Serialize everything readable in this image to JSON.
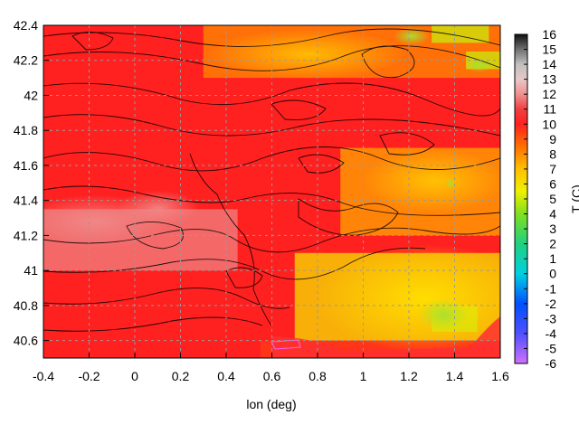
{
  "chart_data": {
    "type": "heatmap",
    "title": "",
    "xlabel": "lon (deg)",
    "ylabel": "",
    "colorbar_label": "T (C)",
    "xlim": [
      -0.4,
      1.6
    ],
    "ylim": [
      40.5,
      42.4
    ],
    "xticks": [
      "-0.4",
      "-0.2",
      "0",
      "0.2",
      "0.4",
      "0.6",
      "0.8",
      "1",
      "1.2",
      "1.4",
      "1.6"
    ],
    "yticks": [
      "40.6",
      "40.8",
      "41",
      "41.2",
      "41.4",
      "41.6",
      "41.8",
      "42",
      "42.2",
      "42.4"
    ],
    "colorbar_range": [
      -6,
      16
    ],
    "colorbar_ticks": [
      "-6",
      "-5",
      "-4",
      "-3",
      "-2",
      "-1",
      "0",
      "1",
      "2",
      "3",
      "4",
      "5",
      "6",
      "7",
      "8",
      "9",
      "10",
      "11",
      "12",
      "13",
      "14",
      "15",
      "16"
    ],
    "colormap": [
      {
        "value": -6,
        "color": "#d070ff"
      },
      {
        "value": -4,
        "color": "#5050ff"
      },
      {
        "value": -2,
        "color": "#0050ff"
      },
      {
        "value": 0,
        "color": "#00d0e0"
      },
      {
        "value": 2,
        "color": "#20d080"
      },
      {
        "value": 4,
        "color": "#80e020"
      },
      {
        "value": 5.5,
        "color": "#f0f000"
      },
      {
        "value": 7,
        "color": "#ffc000"
      },
      {
        "value": 8.5,
        "color": "#ff7000"
      },
      {
        "value": 10,
        "color": "#ff2020"
      },
      {
        "value": 11,
        "color": "#f04040"
      },
      {
        "value": 12,
        "color": "#f09090"
      },
      {
        "value": 13,
        "color": "#e8c8c8"
      },
      {
        "value": 14,
        "color": "#c0c0c0"
      },
      {
        "value": 15,
        "color": "#707070"
      },
      {
        "value": 16,
        "color": "#101010"
      }
    ],
    "grid": true,
    "contours": true,
    "temperature_regions": [
      {
        "lon": [
          -0.4,
          1.6
        ],
        "lat": [
          40.5,
          42.4
        ],
        "t": 10
      },
      {
        "lon": [
          -0.4,
          0.45
        ],
        "lat": [
          41.0,
          41.35
        ],
        "t": 11.8
      },
      {
        "lon": [
          0.3,
          1.6
        ],
        "lat": [
          42.1,
          42.4
        ],
        "t": 8
      },
      {
        "lon": [
          1.3,
          1.55
        ],
        "lat": [
          42.3,
          42.4
        ],
        "t": 5
      },
      {
        "lon": [
          1.45,
          1.6
        ],
        "lat": [
          42.15,
          42.25
        ],
        "t": 5
      },
      {
        "lon": [
          0.9,
          1.6
        ],
        "lat": [
          41.2,
          41.7
        ],
        "t": 7.5
      },
      {
        "lon": [
          0.7,
          1.6
        ],
        "lat": [
          40.6,
          41.1
        ],
        "t": 6
      },
      {
        "lon": [
          1.3,
          1.5
        ],
        "lat": [
          40.65,
          40.8
        ],
        "t": 5
      },
      {
        "lon": [
          0.55,
          1.6
        ],
        "lat": [
          40.5,
          40.6
        ],
        "t": 9.5
      }
    ]
  }
}
